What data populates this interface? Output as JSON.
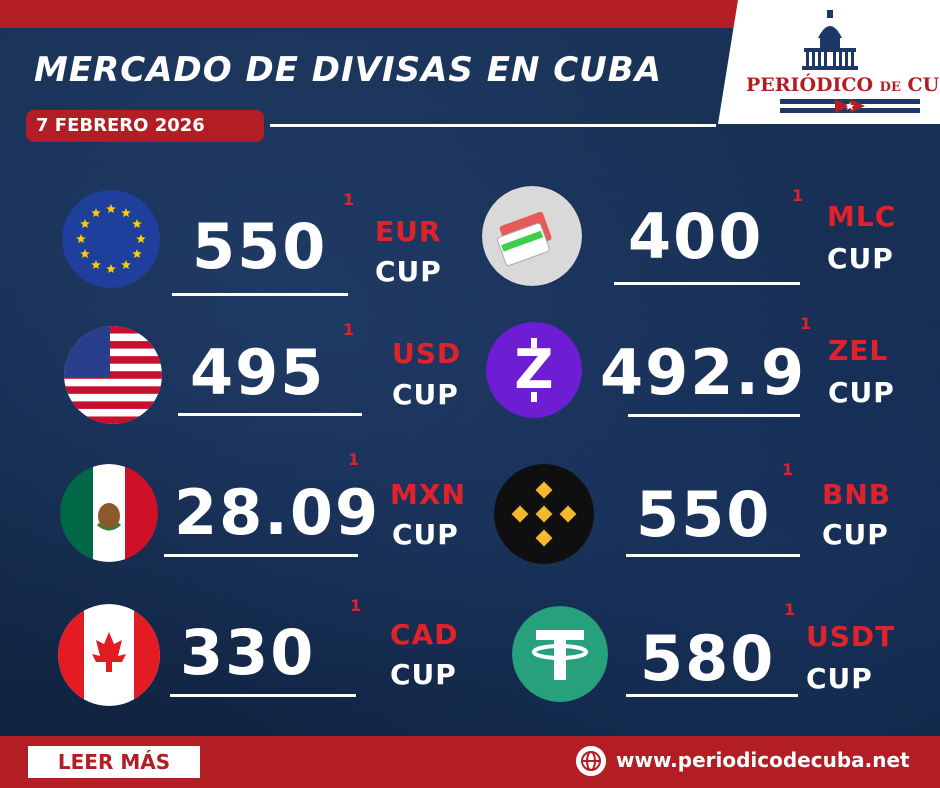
{
  "header": {
    "title": "MERCADO DE DIVISAS EN CUBA",
    "date": "7 FEBRERO 2026",
    "logo_text_main": "PERIÓDICO",
    "logo_text_de": "DE",
    "logo_text_cuba": "CUBA"
  },
  "rates": [
    {
      "value": "550",
      "sup": "1",
      "code": "EUR",
      "cup": "CUP",
      "icon": "eu-flag-icon"
    },
    {
      "value": "400",
      "sup": "1",
      "code": "MLC",
      "cup": "CUP",
      "icon": "mlc-card-icon"
    },
    {
      "value": "495",
      "sup": "1",
      "code": "USD",
      "cup": "CUP",
      "icon": "us-flag-icon"
    },
    {
      "value": "492.9",
      "sup": "1",
      "code": "ZEL",
      "cup": "CUP",
      "icon": "zelle-icon"
    },
    {
      "value": "28.09",
      "sup": "1",
      "code": "MXN",
      "cup": "CUP",
      "icon": "mexico-flag-icon"
    },
    {
      "value": "550",
      "sup": "1",
      "code": "BNB",
      "cup": "CUP",
      "icon": "binance-icon"
    },
    {
      "value": "330",
      "sup": "1",
      "code": "CAD",
      "cup": "CUP",
      "icon": "canada-flag-icon"
    },
    {
      "value": "580",
      "sup": "1",
      "code": "USDT",
      "cup": "CUP",
      "icon": "tether-icon"
    }
  ],
  "footer": {
    "leer_mas": "LEER MÁS",
    "url": "www.periodicodecuba.net",
    "globe_icon": "globe-icon"
  },
  "colors": {
    "accent_red": "#b31d24",
    "code_red": "#e0232b",
    "background_navy": "#13294a"
  }
}
